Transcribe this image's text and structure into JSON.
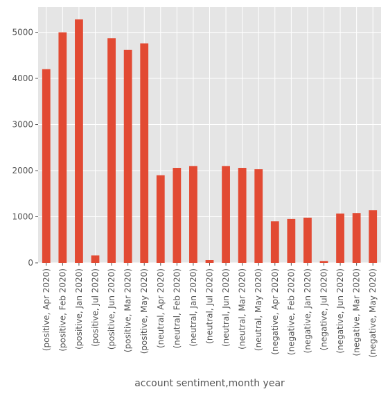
{
  "chart_data": {
    "type": "bar",
    "xlabel": "account sentiment,month year",
    "ylabel": "",
    "ylim": [
      0,
      5550
    ],
    "yticks": [
      0,
      1000,
      2000,
      3000,
      4000,
      5000
    ],
    "grid": true,
    "categories": [
      "(positive, Apr 2020)",
      "(positive, Feb 2020)",
      "(positive, Jan 2020)",
      "(positive, Jul 2020)",
      "(positive, Jun 2020)",
      "(positive, Mar 2020)",
      "(positive, May 2020)",
      "(neutral, Apr 2020)",
      "(neutral, Feb 2020)",
      "(neutral, Jan 2020)",
      "(neutral, Jul 2020)",
      "(neutral, Jun 2020)",
      "(neutral, Mar 2020)",
      "(neutral, May 2020)",
      "(negative, Apr 2020)",
      "(negative, Feb 2020)",
      "(negative, Jan 2020)",
      "(negative, Jul 2020)",
      "(negative, Jun 2020)",
      "(negative, Mar 2020)",
      "(negative, May 2020)"
    ],
    "values": [
      4200,
      5000,
      5280,
      160,
      4870,
      4620,
      4760,
      1900,
      2060,
      2100,
      60,
      2100,
      2060,
      2030,
      900,
      950,
      980,
      40,
      1070,
      1080,
      1140
    ],
    "colors": {
      "bar": "#E24A33",
      "plot_bg": "#E5E5E5",
      "grid": "#FFFFFF",
      "text": "#555555"
    }
  }
}
